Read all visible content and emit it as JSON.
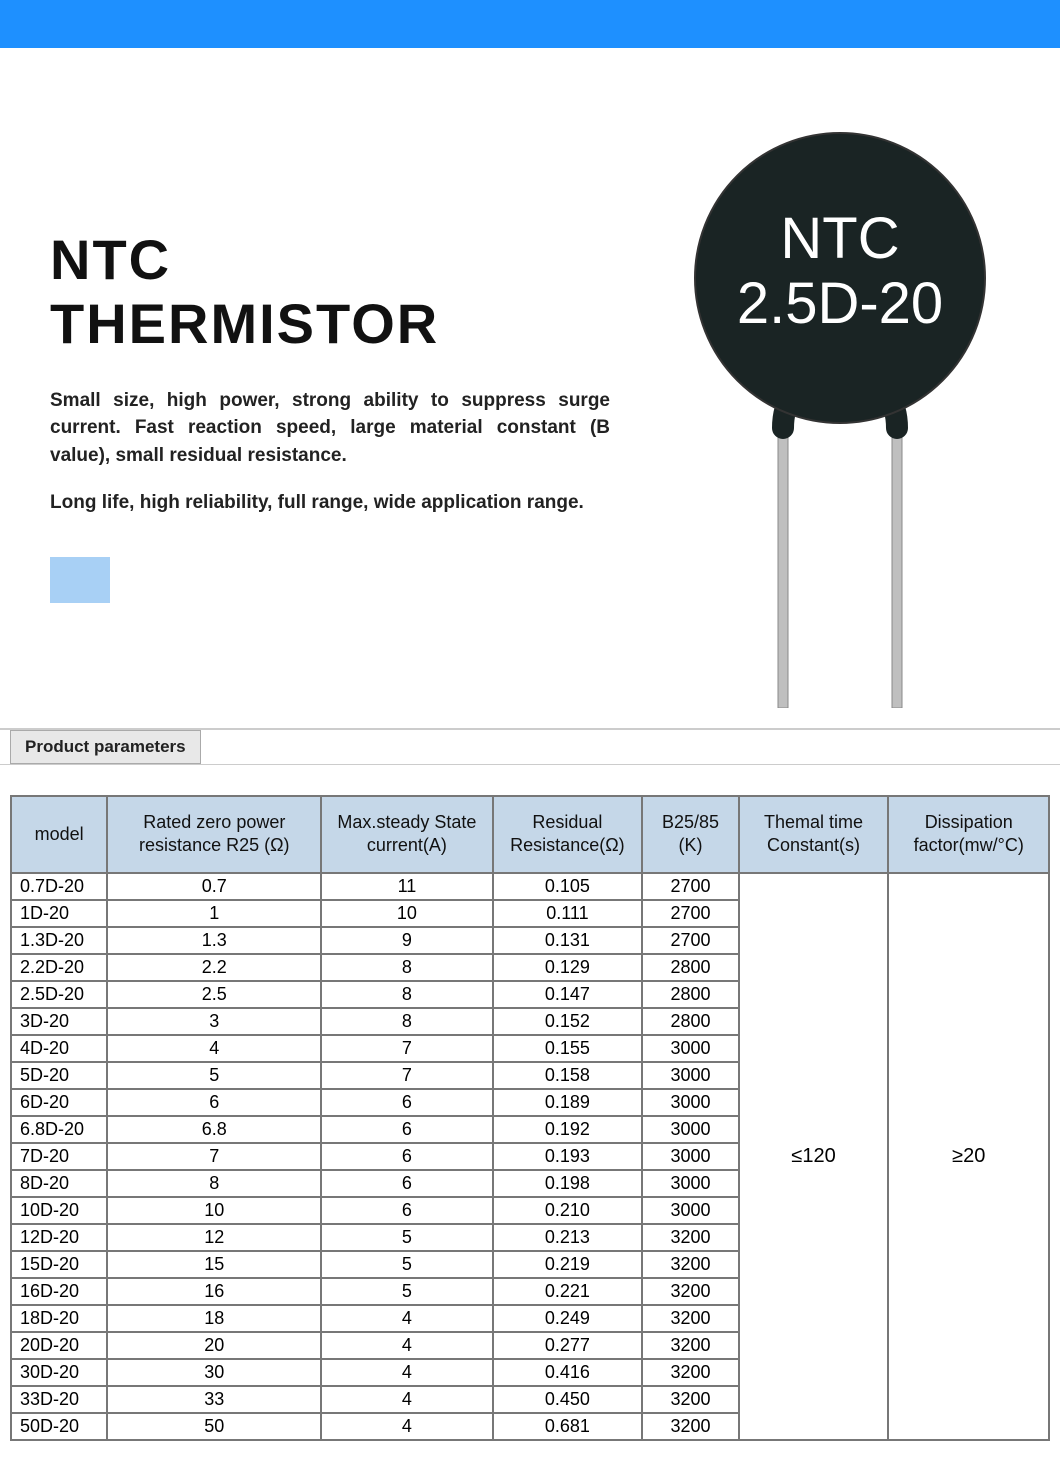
{
  "colors": {
    "topbar": "#1e90ff",
    "table_header_bg": "#c5d7e8",
    "table_border": "#777777",
    "blue_box": "#a8d0f5",
    "thermistor_body": "#1a2424",
    "thermistor_text": "#ffffff",
    "lead_color": "#bfbfbf"
  },
  "hero": {
    "title_line1": "NTC",
    "title_line2": "THERMISTOR",
    "desc1": "Small size, high power, strong ability to suppress surge current. Fast reaction speed, large material constant (B value), small residual resistance.",
    "desc2": "Long life, high reliability, full range, wide application range.",
    "component_label_line1": "NTC",
    "component_label_line2": "2.5D-20"
  },
  "section_label": "Product parameters",
  "table": {
    "columns": [
      "model",
      "Rated zero power resistance R25 (Ω)",
      "Max.steady State current(A)",
      "Residual Resistance(Ω)",
      "B25/85 (K)",
      "Themal time Constant(s)",
      "Dissipation factor(mw/°C)"
    ],
    "merged_thermal": "≤120",
    "merged_dissipation": "≥20",
    "rows": [
      [
        "0.7D-20",
        "0.7",
        "11",
        "0.105",
        "2700"
      ],
      [
        "1D-20",
        "1",
        "10",
        "0.111",
        "2700"
      ],
      [
        "1.3D-20",
        "1.3",
        "9",
        "0.131",
        "2700"
      ],
      [
        "2.2D-20",
        "2.2",
        "8",
        "0.129",
        "2800"
      ],
      [
        "2.5D-20",
        "2.5",
        "8",
        "0.147",
        "2800"
      ],
      [
        "3D-20",
        "3",
        "8",
        "0.152",
        "2800"
      ],
      [
        "4D-20",
        "4",
        "7",
        "0.155",
        "3000"
      ],
      [
        "5D-20",
        "5",
        "7",
        "0.158",
        "3000"
      ],
      [
        "6D-20",
        "6",
        "6",
        "0.189",
        "3000"
      ],
      [
        "6.8D-20",
        "6.8",
        "6",
        "0.192",
        "3000"
      ],
      [
        "7D-20",
        "7",
        "6",
        "0.193",
        "3000"
      ],
      [
        "8D-20",
        "8",
        "6",
        "0.198",
        "3000"
      ],
      [
        "10D-20",
        "10",
        "6",
        "0.210",
        "3000"
      ],
      [
        "12D-20",
        "12",
        "5",
        "0.213",
        "3200"
      ],
      [
        "15D-20",
        "15",
        "5",
        "0.219",
        "3200"
      ],
      [
        "16D-20",
        "16",
        "5",
        "0.221",
        "3200"
      ],
      [
        "18D-20",
        "18",
        "4",
        "0.249",
        "3200"
      ],
      [
        "20D-20",
        "20",
        "4",
        "0.277",
        "3200"
      ],
      [
        "30D-20",
        "30",
        "4",
        "0.416",
        "3200"
      ],
      [
        "33D-20",
        "33",
        "4",
        "0.450",
        "3200"
      ],
      [
        "50D-20",
        "50",
        "4",
        "0.681",
        "3200"
      ]
    ]
  }
}
